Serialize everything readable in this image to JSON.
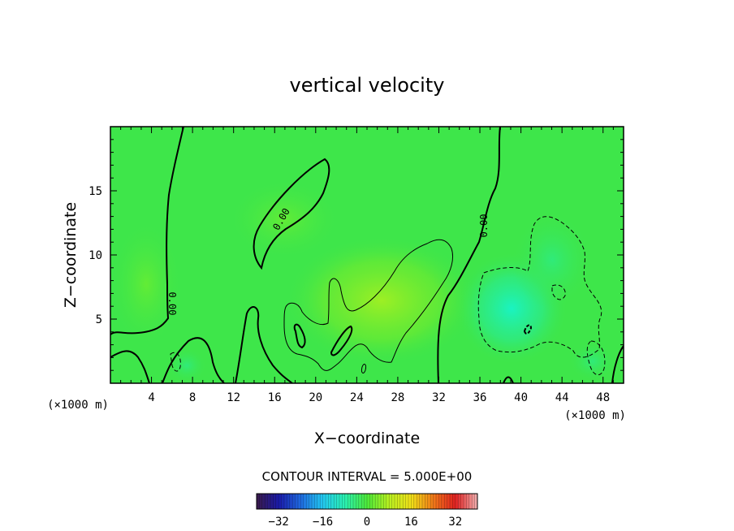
{
  "chart_data": {
    "type": "heatmap",
    "title": "vertical velocity",
    "xlabel": "X−coordinate",
    "ylabel": "Z−coordinate",
    "x_unit": "(×1000 m)",
    "z_unit": "(×1000 m)",
    "xlim": [
      0,
      50
    ],
    "ylim": [
      0,
      20
    ],
    "x_ticks": [
      4,
      8,
      12,
      16,
      20,
      24,
      28,
      32,
      36,
      40,
      44,
      48
    ],
    "y_ticks": [
      5,
      10,
      15
    ],
    "contour_interval_text": "CONTOUR INTERVAL = 5.000E+00",
    "contour_labels": [
      "0.00",
      "0.00",
      "0.00"
    ],
    "colorbar": {
      "range": [
        -40,
        40
      ],
      "ticks": [
        -32,
        -16,
        0,
        16,
        32
      ],
      "tick_labels": [
        "−32",
        "−16",
        "0",
        "16",
        "32"
      ],
      "colormap": [
        "#3a1a4a",
        "#1a1aa8",
        "#1f6ae0",
        "#22c8f0",
        "#2af0b0",
        "#4ce83a",
        "#b8f020",
        "#f0e018",
        "#f07818",
        "#e02020",
        "#f0b0b0"
      ]
    },
    "field_colors": {
      "background": "#3ee64a",
      "updraft_weak": "#62ec34",
      "updraft": "#98ee24",
      "downdraft_weak": "#2ee87a",
      "downdraft": "#1cf0b4"
    }
  }
}
